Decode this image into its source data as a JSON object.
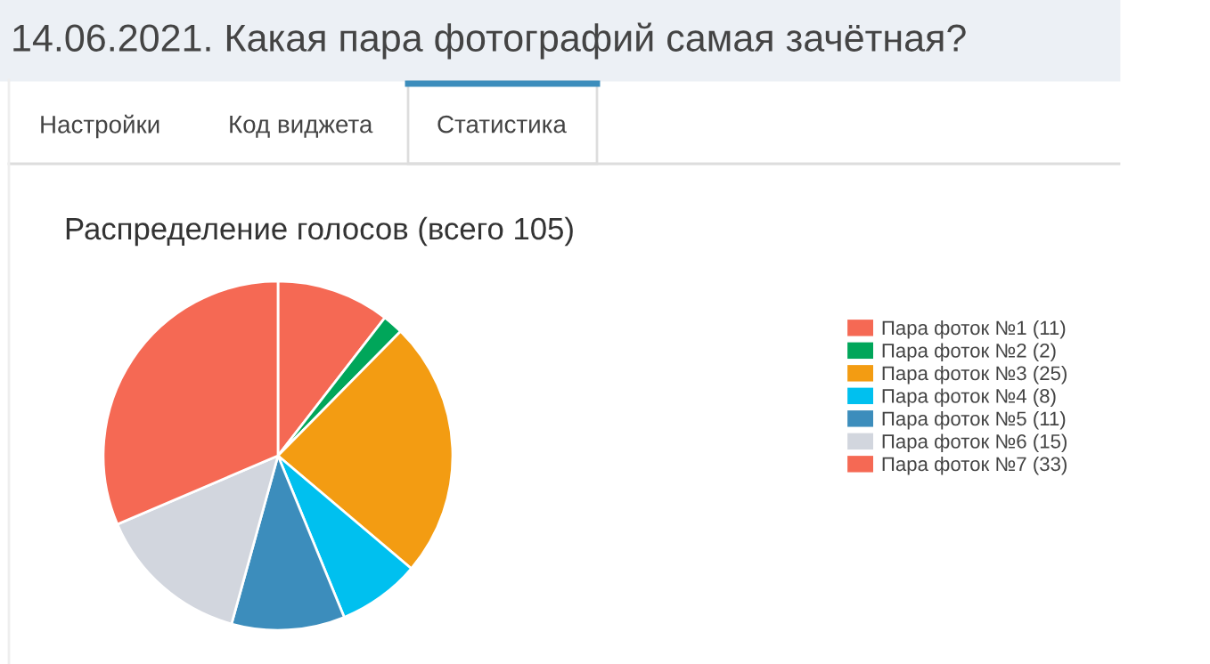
{
  "chart_data": {
    "type": "pie",
    "title": "14.06.2021. Какая пара фотографий самая зачётная?",
    "subtitle": "Распределение голосов (всего 105)",
    "annotations": [
      "Настройки",
      "Код виджета",
      "Статистика"
    ],
    "categories": [
      "Пара фоток №1 (11)",
      "Пара фоток №2 (2)",
      "Пара фоток №3 (25)",
      "Пара фоток №4 (8)",
      "Пара фоток №5 (11)",
      "Пара фоток №6 (15)",
      "Пара фоток №7 (33)"
    ],
    "values": [
      11,
      2,
      25,
      8,
      11,
      15,
      33
    ],
    "colors": [
      "#f56954",
      "#00a65a",
      "#f39c12",
      "#00c0ef",
      "#3c8dbc",
      "#d2d6de",
      "#f56954"
    ],
    "legend": "right"
  }
}
